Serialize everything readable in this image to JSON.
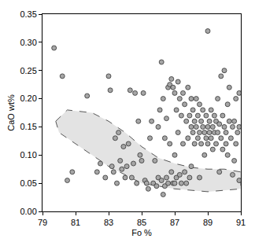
{
  "chart_data": {
    "type": "scatter",
    "x_label": "Fo %",
    "y_label": "CaO wt%",
    "xlim": [
      79,
      91
    ],
    "xticks": [
      79,
      81,
      83,
      85,
      87,
      89,
      91
    ],
    "ylim": [
      0,
      0.35
    ],
    "yticks": [
      {
        "value": 0,
        "label": "0.00"
      },
      0.05,
      {
        "value": 0.1,
        "label": "0.10"
      },
      0.15,
      {
        "value": 0.2,
        "label": "0.20"
      },
      0.25,
      {
        "value": 0.3,
        "label": "0.30"
      },
      0.35
    ],
    "grid": false,
    "series": [
      {
        "type": "area",
        "color": "#e3e3e3",
        "line_style": "dashed",
        "x": [
          79.8,
          80.5,
          82,
          83,
          84,
          85,
          86,
          87,
          88,
          89,
          90,
          91,
          91,
          89,
          87,
          86,
          85,
          84,
          83,
          82,
          81,
          80,
          79.8
        ],
        "values": [
          0.16,
          0.18,
          0.175,
          0.16,
          0.14,
          0.115,
          0.095,
          0.085,
          0.078,
          0.075,
          0.075,
          0.07,
          0.04,
          0.035,
          0.04,
          0.045,
          0.05,
          0.065,
          0.08,
          0.1,
          0.12,
          0.14,
          0.16
        ]
      },
      {
        "type": "scatter",
        "color": "#a6a6a6",
        "marker": "circle",
        "x": [
          79.7,
          80.2,
          80.5,
          80.8,
          81.7,
          82.3,
          82.5,
          82.8,
          83.0,
          83.1,
          83.2,
          83.3,
          83.4,
          83.5,
          83.6,
          83.7,
          83.8,
          83.9,
          84.0,
          84.1,
          84.2,
          84.3,
          84.4,
          84.5,
          84.6,
          84.7,
          84.8,
          84.9,
          85.0,
          85.1,
          85.2,
          85.3,
          85.4,
          85.5,
          85.6,
          85.7,
          85.8,
          85.9,
          86.0,
          86.0,
          86.1,
          86.2,
          86.2,
          86.3,
          86.3,
          86.4,
          86.4,
          86.5,
          86.5,
          86.6,
          86.6,
          86.7,
          86.7,
          86.8,
          86.8,
          86.9,
          86.9,
          87.0,
          87.0,
          87.0,
          87.1,
          87.1,
          87.2,
          87.2,
          87.3,
          87.3,
          87.4,
          87.4,
          87.5,
          87.5,
          87.6,
          87.6,
          87.7,
          87.7,
          87.8,
          87.8,
          87.9,
          87.9,
          88.0,
          88.0,
          88.0,
          88.1,
          88.1,
          88.2,
          88.2,
          88.3,
          88.3,
          88.4,
          88.4,
          88.5,
          88.5,
          88.5,
          88.6,
          88.6,
          88.7,
          88.7,
          88.8,
          88.8,
          88.9,
          88.9,
          89.0,
          89.0,
          89.0,
          89.1,
          89.1,
          89.2,
          89.2,
          89.3,
          89.3,
          89.4,
          89.4,
          89.5,
          89.5,
          89.6,
          89.6,
          89.7,
          89.7,
          89.8,
          89.8,
          89.9,
          89.9,
          90.0,
          90.0,
          90.1,
          90.1,
          90.2,
          90.2,
          90.3,
          90.3,
          90.4,
          90.5,
          90.5,
          90.6,
          90.6,
          90.7,
          90.7,
          90.8,
          90.9,
          90.9,
          90.9
        ],
        "values": [
          0.29,
          0.24,
          0.055,
          0.07,
          0.205,
          0.07,
          0.085,
          0.06,
          0.24,
          0.215,
          0.08,
          0.07,
          0.13,
          0.05,
          0.14,
          0.09,
          0.075,
          0.115,
          0.06,
          0.08,
          0.12,
          0.215,
          0.06,
          0.085,
          0.21,
          0.05,
          0.16,
          0.1,
          0.09,
          0.21,
          0.055,
          0.05,
          0.04,
          0.13,
          0.16,
          0.05,
          0.09,
          0.045,
          0.15,
          0.06,
          0.18,
          0.265,
          0.055,
          0.03,
          0.2,
          0.045,
          0.13,
          0.165,
          0.06,
          0.22,
          0.05,
          0.225,
          0.12,
          0.235,
          0.07,
          0.22,
          0.05,
          0.21,
          0.1,
          0.05,
          0.18,
          0.06,
          0.23,
          0.14,
          0.2,
          0.065,
          0.17,
          0.05,
          0.21,
          0.12,
          0.19,
          0.07,
          0.16,
          0.05,
          0.22,
          0.13,
          0.17,
          0.06,
          0.15,
          0.2,
          0.08,
          0.18,
          0.14,
          0.16,
          0.12,
          0.2,
          0.15,
          0.17,
          0.13,
          0.19,
          0.14,
          0.06,
          0.16,
          0.12,
          0.15,
          0.18,
          0.14,
          0.1,
          0.17,
          0.13,
          0.32,
          0.15,
          0.12,
          0.16,
          0.14,
          0.18,
          0.13,
          0.15,
          0.11,
          0.17,
          0.14,
          0.16,
          0.12,
          0.2,
          0.14,
          0.155,
          0.07,
          0.24,
          0.13,
          0.17,
          0.11,
          0.25,
          0.15,
          0.14,
          0.12,
          0.19,
          0.1,
          0.22,
          0.16,
          0.13,
          0.15,
          0.065,
          0.16,
          0.09,
          0.2,
          0.12,
          0.14,
          0.21,
          0.055,
          0.15
        ]
      }
    ]
  }
}
